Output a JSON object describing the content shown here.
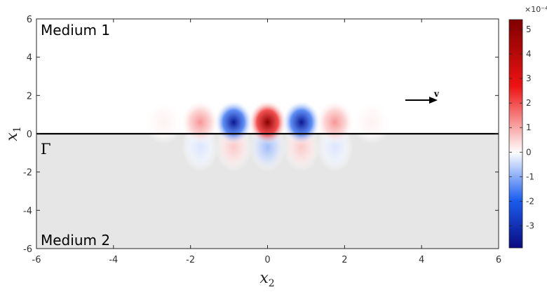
{
  "chart_data": {
    "type": "heatmap",
    "title": "",
    "xlabel": "x",
    "xlabel_subscript": "2",
    "ylabel": "x",
    "ylabel_subscript": "1",
    "xlim": [
      -6,
      6
    ],
    "ylim": [
      -6,
      6
    ],
    "xticks": [
      "-6",
      "-4",
      "-2",
      "0",
      "2",
      "4",
      "6"
    ],
    "yticks": [
      "6",
      "4",
      "2",
      "0",
      "-2",
      "-4",
      "-6"
    ],
    "grid": false,
    "annotations": {
      "medium_top": "Medium 1",
      "medium_bottom": "Medium 2",
      "interface": "Γ",
      "velocity": "v"
    },
    "interface_x1": 0,
    "lower_region_color": "#e6e6e6",
    "field": {
      "description_values_in_units_1e-4": true,
      "lobes": [
        {
          "x2": -2.7,
          "x1": 0.6,
          "value": 0.15
        },
        {
          "x2": -1.75,
          "x1": 0.6,
          "value": 1.2
        },
        {
          "x2": -0.88,
          "x1": 0.6,
          "value": -3.6
        },
        {
          "x2": 0.0,
          "x1": 0.6,
          "value": 5.2
        },
        {
          "x2": 0.88,
          "x1": 0.6,
          "value": -3.6
        },
        {
          "x2": 1.75,
          "x1": 0.6,
          "value": 1.2
        },
        {
          "x2": 2.7,
          "x1": 0.6,
          "value": 0.15
        }
      ],
      "lower_lobes": [
        {
          "x2": -1.75,
          "x1": -0.7,
          "value": -0.3
        },
        {
          "x2": -0.88,
          "x1": -0.7,
          "value": 0.6
        },
        {
          "x2": 0.0,
          "x1": -0.7,
          "value": -0.8
        },
        {
          "x2": 0.88,
          "x1": -0.7,
          "value": 0.6
        },
        {
          "x2": 1.75,
          "x1": -0.7,
          "value": -0.3
        }
      ]
    },
    "colorbar": {
      "exponent": "×10⁻⁴",
      "min": -3.9,
      "max": 5.4,
      "ticks": [
        {
          "value": 5,
          "label": "5"
        },
        {
          "value": 4,
          "label": "4"
        },
        {
          "value": 3,
          "label": "3"
        },
        {
          "value": 2,
          "label": "2"
        },
        {
          "value": 1,
          "label": "1"
        },
        {
          "value": 0,
          "label": "0"
        },
        {
          "value": -1,
          "label": "-1"
        },
        {
          "value": -2,
          "label": "-2"
        },
        {
          "value": -3,
          "label": "-3"
        }
      ],
      "colors": {
        "deep_blue": "#0a0a80",
        "blue": "#1a5ef0",
        "white": "#ffffff",
        "red": "#ee1111",
        "deep_red": "#800000"
      }
    }
  }
}
